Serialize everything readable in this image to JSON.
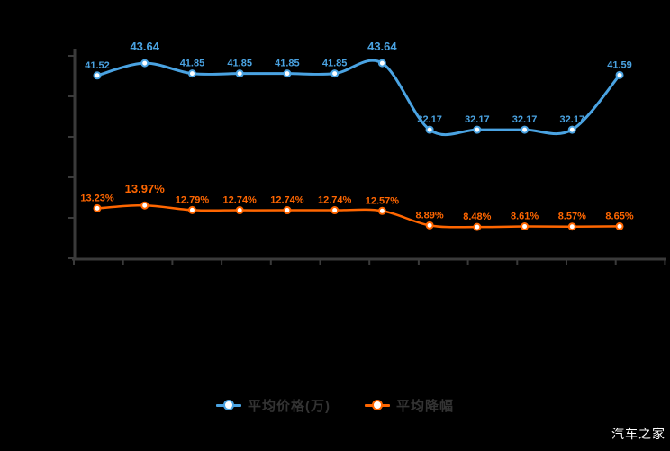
{
  "watermark": "汽车之家",
  "colors": {
    "background": "#000000",
    "axis": "#3a3a3a",
    "price_series": "#4aa3e2",
    "discount_series": "#ff6600",
    "legend_text": "#333333",
    "marker_fill": "#ffffff"
  },
  "chart_data": {
    "type": "line",
    "title": "",
    "smooth": true,
    "grid": false,
    "x_axis": {
      "labels_visible": false,
      "tick_count": 13
    },
    "y_axis": {
      "labels_visible": false,
      "tick_count": 6
    },
    "legend": {
      "position": "bottom",
      "entries": [
        "平均价格(万)",
        "平均降幅"
      ]
    },
    "series": [
      {
        "name": "平均价格(万)",
        "color": "#4aa3e2",
        "axis": "left",
        "values": [
          41.52,
          43.64,
          41.85,
          41.85,
          41.85,
          41.85,
          43.64,
          32.17,
          32.17,
          32.17,
          32.17,
          41.59
        ],
        "labels": [
          "41.52",
          "43.64",
          "41.85",
          "41.85",
          "41.85",
          "41.85",
          "43.64",
          "32.17",
          "32.17",
          "32.17",
          "32.17",
          "41.59"
        ]
      },
      {
        "name": "平均降幅",
        "color": "#ff6600",
        "axis": "right",
        "values": [
          13.23,
          13.97,
          12.79,
          12.74,
          12.74,
          12.74,
          12.57,
          8.89,
          8.48,
          8.61,
          8.57,
          8.65
        ],
        "labels": [
          "13.23%",
          "13.97%",
          "12.79%",
          "12.74%",
          "12.74%",
          "12.74%",
          "12.57%",
          "8.89%",
          "8.48%",
          "8.61%",
          "8.57%",
          "8.65%"
        ]
      }
    ]
  }
}
